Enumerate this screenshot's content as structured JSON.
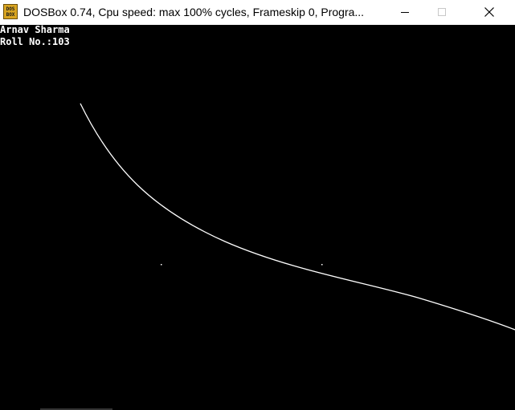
{
  "window": {
    "title": "DOSBox 0.74, Cpu speed: max 100% cycles, Frameskip  0, Progra...",
    "icon": "dosbox-icon",
    "icon_text_top": "DOS",
    "icon_text_bottom": "BOX",
    "controls": [
      "minimize-icon",
      "maximize-icon",
      "close-icon"
    ]
  },
  "screen": {
    "background": "#000000",
    "foreground": "#ffffff",
    "lines": {
      "name": "Arnav Sharma",
      "roll": "Roll No.:103"
    }
  }
}
